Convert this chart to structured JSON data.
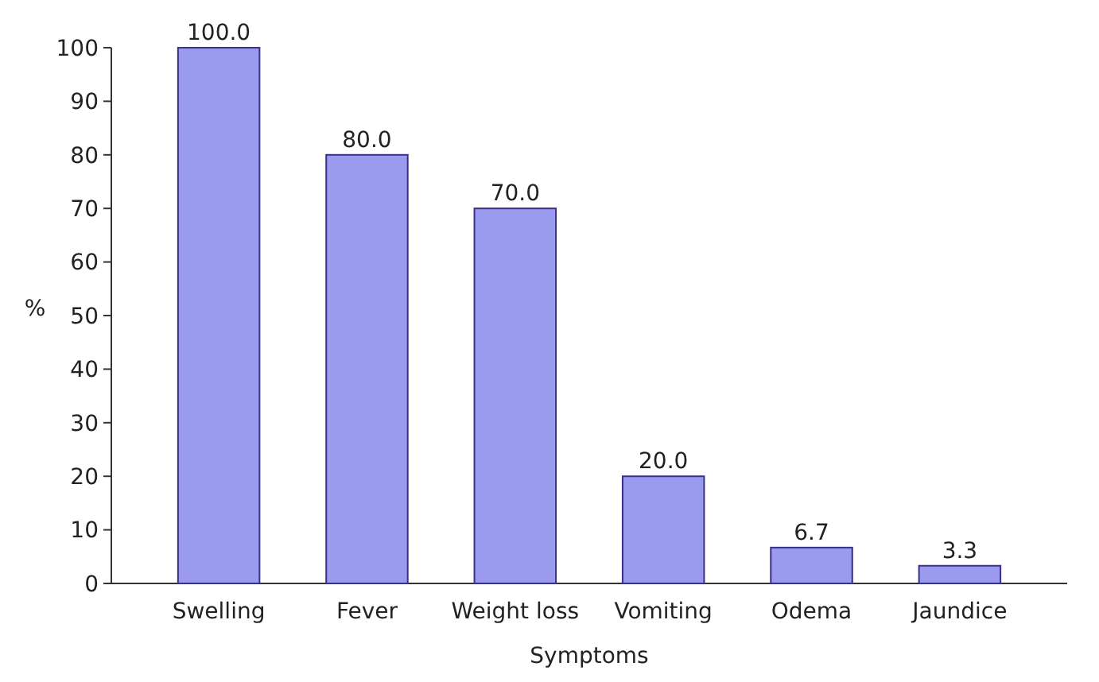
{
  "chart_data": {
    "type": "bar",
    "xlabel": "Symptoms",
    "ylabel": "%",
    "categories": [
      "Swelling",
      "Fever",
      "Weight loss",
      "Vomiting",
      "Odema",
      "Jaundice"
    ],
    "values": [
      100.0,
      80.0,
      70.0,
      20.0,
      6.7,
      3.3
    ],
    "color": "#9a9aee",
    "value_labels": [
      "100.0",
      "80.0",
      "70.0",
      "20.0",
      "6.7",
      "3.3"
    ],
    "ylim": [
      0,
      100
    ],
    "yticks": [
      0,
      10,
      20,
      30,
      40,
      50,
      60,
      70,
      80,
      90,
      100
    ]
  }
}
